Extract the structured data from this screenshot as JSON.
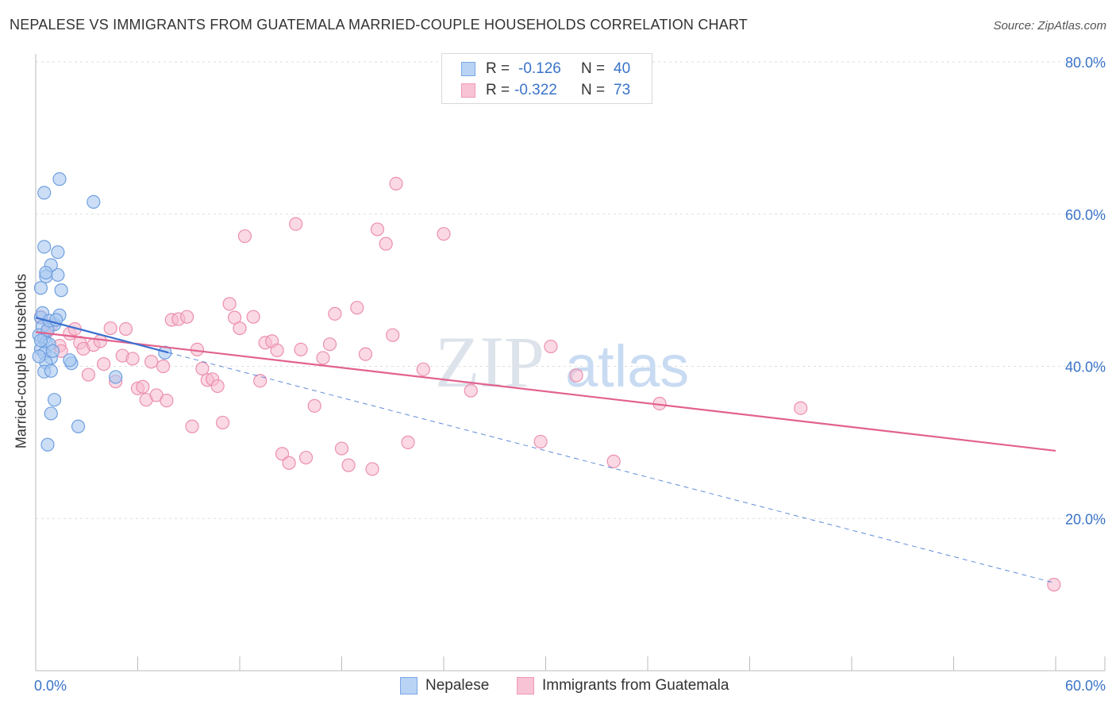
{
  "title": "NEPALESE VS IMMIGRANTS FROM GUATEMALA MARRIED-COUPLE HOUSEHOLDS CORRELATION CHART",
  "source": "Source: ZipAtlas.com",
  "watermark": {
    "zip": "ZIP",
    "atlas": "atlas"
  },
  "stats": {
    "nepalese": {
      "r_label": "R =",
      "r": "-0.126",
      "n_label": "N =",
      "n": "40"
    },
    "guatemala": {
      "r_label": "R =",
      "r": "-0.322",
      "n_label": "N =",
      "n": "73"
    }
  },
  "legend": {
    "nepalese": "Nepalese",
    "guatemala": "Immigrants from Guatemala"
  },
  "colors": {
    "blue_fill": "#a9c8f0",
    "blue_stroke": "#6f9fe0",
    "blue_line": "#3a6fcf",
    "pink_fill": "#f6b9cd",
    "pink_stroke": "#ec8fae",
    "pink_line": "#e2628e",
    "tick_label": "#3a73c8",
    "grid": "#dddddd"
  },
  "chart_data": {
    "type": "scatter",
    "title": "NEPALESE VS IMMIGRANTS FROM GUATEMALA MARRIED-COUPLE HOUSEHOLDS CORRELATION CHART",
    "xlabel": "",
    "ylabel": "Married-couple Households",
    "xlim": [
      0,
      60
    ],
    "ylim": [
      0,
      80
    ],
    "x_tick_labels": [
      "0.0%",
      "60.0%"
    ],
    "y_ticks": [
      20,
      40,
      60,
      80
    ],
    "y_tick_labels": [
      "20.0%",
      "40.0%",
      "60.0%",
      "80.0%"
    ],
    "series": [
      {
        "name": "Nepalese",
        "r": -0.126,
        "n": 40,
        "trend": {
          "x0": 0.0,
          "y0": 46.4,
          "x1": 7.8,
          "y1": 41.8,
          "extrap_x1": 60.0,
          "extrap_y1": 11.5
        },
        "points": [
          [
            0.3,
            46.4
          ],
          [
            0.4,
            45.2
          ],
          [
            0.2,
            44.1
          ],
          [
            0.5,
            43.6
          ],
          [
            0.6,
            43.1
          ],
          [
            0.8,
            42.9
          ],
          [
            0.3,
            42.3
          ],
          [
            0.5,
            41.7
          ],
          [
            0.9,
            41.1
          ],
          [
            0.6,
            40.5
          ],
          [
            0.5,
            39.3
          ],
          [
            0.9,
            39.4
          ],
          [
            1.1,
            45.5
          ],
          [
            1.4,
            46.7
          ],
          [
            1.5,
            50.0
          ],
          [
            0.6,
            51.8
          ],
          [
            1.3,
            52.0
          ],
          [
            0.9,
            53.3
          ],
          [
            0.5,
            55.7
          ],
          [
            1.3,
            55.0
          ],
          [
            0.3,
            50.3
          ],
          [
            0.5,
            62.8
          ],
          [
            1.4,
            64.6
          ],
          [
            3.4,
            61.6
          ],
          [
            1.1,
            35.6
          ],
          [
            0.9,
            33.8
          ],
          [
            2.5,
            32.1
          ],
          [
            0.7,
            29.7
          ],
          [
            2.1,
            40.4
          ],
          [
            2.0,
            40.8
          ],
          [
            4.7,
            38.6
          ],
          [
            7.6,
            41.8
          ],
          [
            0.4,
            47.0
          ],
          [
            0.7,
            44.8
          ],
          [
            0.3,
            43.4
          ],
          [
            1.0,
            42.0
          ],
          [
            0.2,
            41.3
          ],
          [
            0.8,
            46.0
          ],
          [
            1.2,
            46.1
          ],
          [
            0.6,
            52.3
          ]
        ]
      },
      {
        "name": "Immigrants from Guatemala",
        "r": -0.322,
        "n": 73,
        "trend": {
          "x0": 0.0,
          "y0": 44.5,
          "x1": 60.0,
          "y1": 28.9
        },
        "points": [
          [
            0.3,
            46.5
          ],
          [
            0.7,
            44.6
          ],
          [
            0.9,
            45.4
          ],
          [
            1.4,
            42.7
          ],
          [
            1.5,
            42.0
          ],
          [
            2.0,
            44.3
          ],
          [
            2.3,
            44.9
          ],
          [
            2.6,
            43.1
          ],
          [
            2.8,
            42.3
          ],
          [
            3.1,
            38.9
          ],
          [
            3.4,
            42.8
          ],
          [
            3.8,
            43.3
          ],
          [
            4.0,
            40.3
          ],
          [
            4.4,
            45.0
          ],
          [
            4.7,
            38.0
          ],
          [
            5.1,
            41.4
          ],
          [
            5.3,
            44.9
          ],
          [
            5.7,
            41.0
          ],
          [
            6.0,
            37.1
          ],
          [
            6.3,
            37.3
          ],
          [
            6.5,
            35.6
          ],
          [
            6.8,
            40.6
          ],
          [
            7.1,
            36.2
          ],
          [
            7.5,
            40.0
          ],
          [
            7.7,
            35.5
          ],
          [
            8.0,
            46.1
          ],
          [
            8.4,
            46.2
          ],
          [
            8.9,
            46.5
          ],
          [
            9.2,
            32.1
          ],
          [
            9.5,
            42.2
          ],
          [
            9.8,
            39.7
          ],
          [
            10.1,
            38.2
          ],
          [
            10.4,
            38.3
          ],
          [
            10.7,
            37.4
          ],
          [
            11.0,
            32.6
          ],
          [
            11.4,
            48.2
          ],
          [
            11.7,
            46.4
          ],
          [
            12.0,
            45.0
          ],
          [
            12.3,
            57.1
          ],
          [
            12.8,
            46.5
          ],
          [
            13.2,
            38.1
          ],
          [
            13.5,
            43.1
          ],
          [
            13.9,
            43.3
          ],
          [
            14.2,
            42.1
          ],
          [
            14.5,
            28.5
          ],
          [
            14.9,
            27.3
          ],
          [
            15.3,
            58.7
          ],
          [
            15.6,
            42.2
          ],
          [
            15.9,
            28.0
          ],
          [
            16.4,
            34.8
          ],
          [
            16.9,
            41.1
          ],
          [
            17.3,
            42.9
          ],
          [
            17.6,
            46.9
          ],
          [
            18.0,
            29.2
          ],
          [
            18.4,
            27.0
          ],
          [
            18.9,
            47.7
          ],
          [
            19.4,
            41.6
          ],
          [
            19.8,
            26.5
          ],
          [
            20.1,
            58.0
          ],
          [
            20.6,
            56.1
          ],
          [
            21.0,
            44.1
          ],
          [
            21.2,
            64.0
          ],
          [
            21.9,
            30.0
          ],
          [
            22.8,
            39.6
          ],
          [
            24.0,
            57.4
          ],
          [
            25.6,
            36.8
          ],
          [
            29.7,
            30.1
          ],
          [
            30.3,
            42.6
          ],
          [
            31.8,
            38.8
          ],
          [
            34.0,
            27.5
          ],
          [
            36.7,
            35.1
          ],
          [
            45.0,
            34.5
          ],
          [
            59.9,
            11.3
          ]
        ]
      }
    ]
  }
}
